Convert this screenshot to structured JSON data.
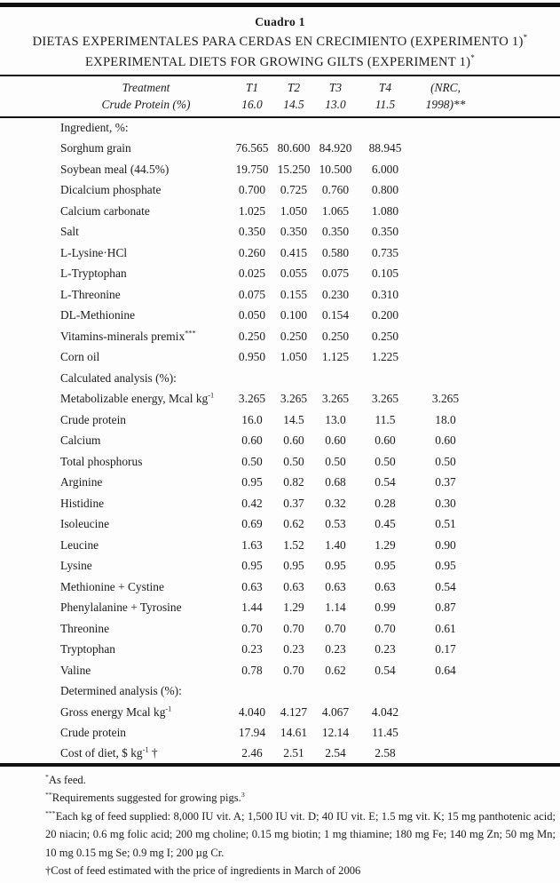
{
  "page": {
    "background": "#fdfdfd",
    "text_color": "#1c1c1c",
    "rule_color": "#111111"
  },
  "header": {
    "table_number": "Cuadro 1",
    "title_es": "DIETAS EXPERIMENTALES PARA CERDAS EN CRECIMIENTO (EXPERIMENTO 1)",
    "title_es_sup": "*",
    "title_en": "EXPERIMENTAL DIETS FOR GROWING GILTS (EXPERIMENT 1)",
    "title_en_sup": "*"
  },
  "table": {
    "columns": [
      {
        "line1": "Treatment",
        "line2": "Crude Protein (%)"
      },
      {
        "line1": "T1",
        "line2": "16.0"
      },
      {
        "line1": "T2",
        "line2": "14.5"
      },
      {
        "line1": "T3",
        "line2": "13.0"
      },
      {
        "line1": "T4",
        "line2": "11.5"
      },
      {
        "line1": "(NRC,",
        "line2": "1998)**"
      }
    ],
    "rows": [
      {
        "type": "section",
        "label": "Ingredient, %:"
      },
      {
        "type": "data",
        "label": "Sorghum grain",
        "values": [
          "76.565",
          "80.600",
          "84.920",
          "88.945",
          ""
        ]
      },
      {
        "type": "data",
        "label": "Soybean meal (44.5%)",
        "values": [
          "19.750",
          "15.250",
          "10.500",
          "6.000",
          ""
        ]
      },
      {
        "type": "data",
        "label": "Dicalcium phosphate",
        "values": [
          "0.700",
          "0.725",
          "0.760",
          "0.800",
          ""
        ]
      },
      {
        "type": "data",
        "label": "Calcium carbonate",
        "values": [
          "1.025",
          "1.050",
          "1.065",
          "1.080",
          ""
        ]
      },
      {
        "type": "data",
        "label": "Salt",
        "values": [
          "0.350",
          "0.350",
          "0.350",
          "0.350",
          ""
        ]
      },
      {
        "type": "data",
        "label": "L-Lysine·HCl",
        "values": [
          "0.260",
          "0.415",
          "0.580",
          "0.735",
          ""
        ]
      },
      {
        "type": "data",
        "label": "L-Tryptophan",
        "values": [
          "0.025",
          "0.055",
          "0.075",
          "0.105",
          ""
        ]
      },
      {
        "type": "data",
        "label": "L-Threonine",
        "values": [
          "0.075",
          "0.155",
          "0.230",
          "0.310",
          ""
        ]
      },
      {
        "type": "data",
        "label": "DL-Methionine",
        "values": [
          "0.050",
          "0.100",
          "0.154",
          "0.200",
          ""
        ]
      },
      {
        "type": "data",
        "label": "Vitamins-minerals premix",
        "sup": "***",
        "values": [
          "0.250",
          "0.250",
          "0.250",
          "0.250",
          ""
        ]
      },
      {
        "type": "data",
        "label": "Corn oil",
        "values": [
          "0.950",
          "1.050",
          "1.125",
          "1.225",
          ""
        ]
      },
      {
        "type": "section",
        "label": "Calculated analysis (%):"
      },
      {
        "type": "data",
        "label": "Metabolizable energy, Mcal kg",
        "sup": "-1",
        "values": [
          "3.265",
          "3.265",
          "3.265",
          "3.265",
          "3.265"
        ]
      },
      {
        "type": "data",
        "label": "Crude protein",
        "values": [
          "16.0",
          "14.5",
          "13.0",
          "11.5",
          "18.0"
        ]
      },
      {
        "type": "data",
        "label": "Calcium",
        "values": [
          "0.60",
          "0.60",
          "0.60",
          "0.60",
          "0.60"
        ]
      },
      {
        "type": "data",
        "label": "Total phosphorus",
        "values": [
          "0.50",
          "0.50",
          "0.50",
          "0.50",
          "0.50"
        ]
      },
      {
        "type": "data",
        "label": "Arginine",
        "values": [
          "0.95",
          "0.82",
          "0.68",
          "0.54",
          "0.37"
        ]
      },
      {
        "type": "data",
        "label": "Histidine",
        "values": [
          "0.42",
          "0.37",
          "0.32",
          "0.28",
          "0.30"
        ]
      },
      {
        "type": "data",
        "label": "Isoleucine",
        "values": [
          "0.69",
          "0.62",
          "0.53",
          "0.45",
          "0.51"
        ]
      },
      {
        "type": "data",
        "label": "Leucine",
        "values": [
          "1.63",
          "1.52",
          "1.40",
          "1.29",
          "0.90"
        ]
      },
      {
        "type": "data",
        "label": "Lysine",
        "values": [
          "0.95",
          "0.95",
          "0.95",
          "0.95",
          "0.95"
        ]
      },
      {
        "type": "data",
        "label": "Methionine + Cystine",
        "values": [
          "0.63",
          "0.63",
          "0.63",
          "0.63",
          "0.54"
        ]
      },
      {
        "type": "data",
        "label": "Phenylalanine + Tyrosine",
        "values": [
          "1.44",
          "1.29",
          "1.14",
          "0.99",
          "0.87"
        ]
      },
      {
        "type": "data",
        "label": "Threonine",
        "values": [
          "0.70",
          "0.70",
          "0.70",
          "0.70",
          "0.61"
        ]
      },
      {
        "type": "data",
        "label": "Tryptophan",
        "values": [
          "0.23",
          "0.23",
          "0.23",
          "0.23",
          "0.17"
        ]
      },
      {
        "type": "data",
        "label": "Valine",
        "values": [
          "0.78",
          "0.70",
          "0.62",
          "0.54",
          "0.64"
        ]
      },
      {
        "type": "section",
        "label": "Determined analysis (%):"
      },
      {
        "type": "data",
        "label": "Gross energy Mcal kg",
        "sup": "-1",
        "values": [
          "4.040",
          "4.127",
          "4.067",
          "4.042",
          ""
        ]
      },
      {
        "type": "data",
        "label": "Crude protein",
        "values": [
          "17.94",
          "14.61",
          "12.14",
          "11.45",
          ""
        ]
      },
      {
        "type": "data",
        "label": "Cost of diet, $ kg",
        "sup": "-1",
        "suffix": " †",
        "values": [
          "2.46",
          "2.51",
          "2.54",
          "2.58",
          ""
        ]
      }
    ]
  },
  "footnotes": [
    {
      "sup": "*",
      "text": "As feed."
    },
    {
      "sup": "**",
      "text": "Requirements suggested for growing pigs.",
      "end_sup": "3"
    },
    {
      "sup": "***",
      "text": "Each kg of feed supplied: 8,000 IU vit. A; 1,500 IU vit. D; 40 IU vit. E; 1.5 mg vit. K; 15 mg panthotenic acid; 20 niacin; 0.6 mg folic acid; 200 mg choline; 0.15 mg biotin; 1 mg thiamine; 180 mg Fe; 140 mg Zn; 50 mg Mn; 10 mg 0.15 mg Se; 0.9 mg I; 200 µg Cr."
    },
    {
      "sup": "",
      "text": "†Cost of feed estimated with the price of ingredients in March of 2006"
    }
  ]
}
